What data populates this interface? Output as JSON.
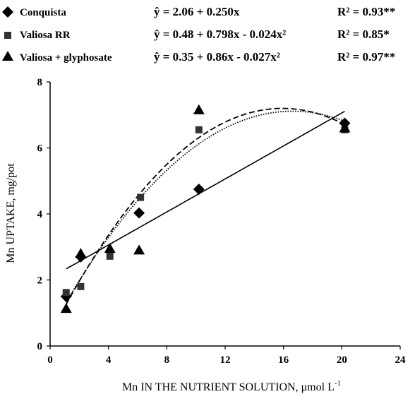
{
  "chart_data": {
    "type": "scatter",
    "xlabel": "Mn IN THE NUTRIENT SOLUTION, μmol L",
    "xlabel_sup": "-1",
    "ylabel": "Mn UPTAKE, mg/pot",
    "xlim": [
      0,
      24
    ],
    "ylim": [
      0,
      8
    ],
    "xticks": [
      "0",
      "4",
      "8",
      "12",
      "16",
      "20",
      "24"
    ],
    "yticks": [
      "0",
      "2",
      "4",
      "6",
      "8"
    ],
    "grid": false,
    "legend_position": "top",
    "series": [
      {
        "name": "Conquista",
        "marker": "diamond",
        "equation": "ŷ = 2.06 + 0.250x",
        "r2": "R² = 0.93**",
        "fit": {
          "type": "linear",
          "coef": [
            2.06,
            0.25
          ],
          "line_style": "solid"
        },
        "points": [
          {
            "x": 1.1,
            "y": 1.5
          },
          {
            "x": 2.1,
            "y": 2.7
          },
          {
            "x": 6.1,
            "y": 4.03
          },
          {
            "x": 10.2,
            "y": 4.75
          },
          {
            "x": 20.2,
            "y": 6.75
          }
        ]
      },
      {
        "name": "Valiosa RR",
        "marker": "square",
        "equation": "ŷ = 0.48 + 0.798x - 0.024x²",
        "r2": "R² = 0.85*",
        "fit": {
          "type": "quadratic",
          "coef": [
            0.48,
            0.798,
            -0.024
          ],
          "line_style": "dotted"
        },
        "points": [
          {
            "x": 1.1,
            "y": 1.62
          },
          {
            "x": 2.1,
            "y": 1.8
          },
          {
            "x": 4.1,
            "y": 2.72
          },
          {
            "x": 6.2,
            "y": 4.5
          },
          {
            "x": 10.2,
            "y": 6.55
          },
          {
            "x": 20.2,
            "y": 6.55
          }
        ]
      },
      {
        "name": "Valiosa + glyphosate",
        "marker": "triangle",
        "equation": "ŷ = 0.35 + 0.86x - 0.027x²",
        "r2": "R² = 0.97**",
        "fit": {
          "type": "quadratic",
          "coef": [
            0.35,
            0.86,
            -0.027
          ],
          "line_style": "dashed"
        },
        "points": [
          {
            "x": 1.1,
            "y": 1.13
          },
          {
            "x": 2.1,
            "y": 2.8
          },
          {
            "x": 4.1,
            "y": 2.95
          },
          {
            "x": 6.1,
            "y": 2.9
          },
          {
            "x": 10.2,
            "y": 7.15
          },
          {
            "x": 20.2,
            "y": 6.6
          }
        ]
      }
    ]
  }
}
